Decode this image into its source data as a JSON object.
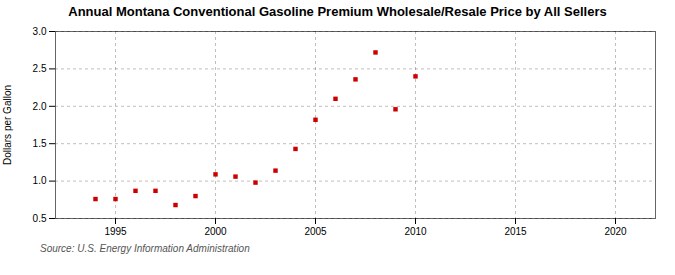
{
  "chart_data": {
    "type": "scatter",
    "title": "Annual Montana Conventional Gasoline Premium Wholesale/Resale Price by All Sellers",
    "y_label": "Dollars per Gallon",
    "source": "Source: U.S. Energy Information Administration",
    "x": [
      1994,
      1995,
      1996,
      1997,
      1998,
      1999,
      2000,
      2001,
      2002,
      2003,
      2004,
      2005,
      2006,
      2007,
      2008,
      2009,
      2010
    ],
    "values": [
      0.76,
      0.76,
      0.87,
      0.87,
      0.68,
      0.8,
      1.09,
      1.06,
      0.98,
      1.14,
      1.43,
      1.82,
      2.1,
      2.36,
      2.72,
      1.96,
      2.4
    ],
    "color": "#cc0000",
    "marker": "square",
    "xlim": [
      1992,
      2022
    ],
    "ylim": [
      0.5,
      3.0
    ],
    "xticks": [
      1995,
      2000,
      2005,
      2010,
      2015,
      2020
    ],
    "yticks": [
      0.5,
      {
        "value": 1.0,
        "label": "1.0"
      },
      1.5,
      {
        "value": 2.0,
        "label": "2.0"
      },
      2.5,
      {
        "value": 3.0,
        "label": "3.0"
      }
    ],
    "grid": true
  }
}
